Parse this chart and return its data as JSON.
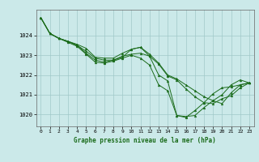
{
  "title": "Graphe pression niveau de la mer (hPa)",
  "bg_color": "#cbe9e9",
  "grid_color": "#a0c8c8",
  "line_color": "#1a6b1a",
  "marker_color": "#1a6b1a",
  "xlim": [
    -0.5,
    23.5
  ],
  "ylim": [
    1019.4,
    1025.3
  ],
  "yticks": [
    1020,
    1021,
    1022,
    1023,
    1024
  ],
  "xticks": [
    0,
    1,
    2,
    3,
    4,
    5,
    6,
    7,
    8,
    9,
    10,
    11,
    12,
    13,
    14,
    15,
    16,
    17,
    18,
    19,
    20,
    21,
    22,
    23
  ],
  "series": [
    {
      "x": [
        0,
        1,
        2,
        3,
        4,
        5,
        6,
        7,
        8,
        9,
        10,
        11,
        12,
        13,
        14,
        15,
        16,
        17,
        18,
        19,
        20,
        21,
        22,
        23
      ],
      "y": [
        1024.9,
        1024.1,
        1023.85,
        1023.7,
        1023.55,
        1023.35,
        1022.9,
        1022.85,
        1022.85,
        1023.1,
        1023.3,
        1023.4,
        1023.05,
        1022.6,
        1022.0,
        1021.8,
        1021.5,
        1021.2,
        1020.9,
        1020.7,
        1020.55,
        1021.1,
        1021.5,
        1021.6
      ]
    },
    {
      "x": [
        0,
        1,
        2,
        3,
        4,
        5,
        6,
        7,
        8,
        9,
        10,
        11,
        12,
        13,
        14,
        15,
        16,
        17,
        18,
        19,
        20,
        21,
        22,
        23
      ],
      "y": [
        1024.9,
        1024.1,
        1023.85,
        1023.7,
        1023.5,
        1023.2,
        1022.85,
        1022.75,
        1022.75,
        1022.95,
        1023.05,
        1023.1,
        1022.95,
        1022.55,
        1021.95,
        1021.75,
        1021.3,
        1020.9,
        1020.6,
        1020.55,
        1020.8,
        1020.95,
        1021.35,
        1021.6
      ]
    },
    {
      "x": [
        0,
        1,
        2,
        3,
        4,
        5,
        6,
        7,
        8,
        9,
        10,
        11,
        12,
        13,
        14,
        15,
        16,
        17,
        18,
        19,
        20,
        21,
        22,
        23
      ],
      "y": [
        1024.9,
        1024.1,
        1023.85,
        1023.7,
        1023.5,
        1023.1,
        1022.75,
        1022.65,
        1022.75,
        1022.9,
        1023.3,
        1023.4,
        1022.95,
        1022.0,
        1021.7,
        1019.95,
        1019.9,
        1019.95,
        1020.35,
        1020.7,
        1021.0,
        1021.5,
        1021.75,
        1021.6
      ]
    },
    {
      "x": [
        0,
        1,
        2,
        3,
        4,
        5,
        6,
        7,
        8,
        9,
        10,
        11,
        12,
        13,
        14,
        15,
        16,
        17,
        18,
        19,
        20,
        21,
        22,
        23
      ],
      "y": [
        1024.9,
        1024.1,
        1023.85,
        1023.65,
        1023.45,
        1023.05,
        1022.65,
        1022.6,
        1022.7,
        1022.85,
        1023.0,
        1022.85,
        1022.5,
        1021.5,
        1021.2,
        1019.95,
        1019.85,
        1020.2,
        1020.6,
        1021.05,
        1021.35,
        1021.4,
        1021.5,
        1021.6
      ]
    }
  ]
}
